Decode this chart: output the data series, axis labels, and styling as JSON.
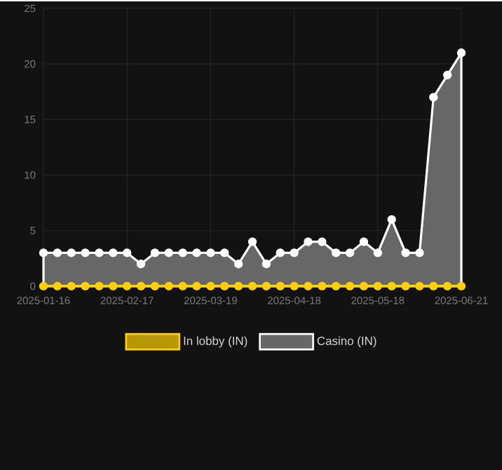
{
  "chart_data": {
    "type": "area",
    "categories": [
      "2025-01-16",
      null,
      null,
      null,
      null,
      null,
      "2025-02-17",
      null,
      null,
      null,
      null,
      null,
      "2025-03-19",
      null,
      null,
      null,
      null,
      null,
      "2025-04-18",
      null,
      null,
      null,
      null,
      null,
      "2025-05-18",
      null,
      null,
      null,
      null,
      null,
      "2025-06-21"
    ],
    "series": [
      {
        "name": "In lobby (IN)",
        "color": "#ffd000",
        "type": "line",
        "values": [
          0,
          0,
          0,
          0,
          0,
          0,
          0,
          0,
          0,
          0,
          0,
          0,
          0,
          0,
          0,
          0,
          0,
          0,
          0,
          0,
          0,
          0,
          0,
          0,
          0,
          0,
          0,
          0,
          0,
          0,
          0
        ]
      },
      {
        "name": "Casino (IN)",
        "color": "#ffffff",
        "values": [
          3,
          3,
          3,
          3,
          3,
          3,
          3,
          2,
          3,
          3,
          3,
          3,
          3,
          3,
          2,
          4,
          2,
          3,
          3,
          4,
          4,
          3,
          3,
          4,
          3,
          6,
          3,
          3,
          17,
          19,
          21
        ]
      }
    ],
    "ylim": [
      0,
      25
    ],
    "yticks": [
      0,
      5,
      10,
      15,
      20,
      25
    ],
    "grid": true,
    "legend": "bottom",
    "marker": "circle",
    "line_style": "solid"
  }
}
